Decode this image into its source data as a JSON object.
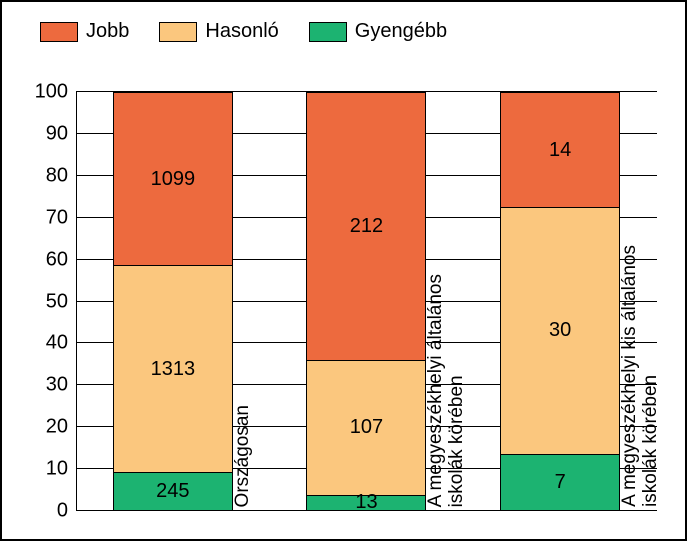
{
  "chart": {
    "type": "stacked-bar-percent",
    "background_color": "#ffffff",
    "border_color": "#000000",
    "legend": [
      {
        "label": "Jobb",
        "color": "#ed6a3e"
      },
      {
        "label": "Hasonló",
        "color": "#fbc77e"
      },
      {
        "label": "Gyengébb",
        "color": "#1cb371"
      }
    ],
    "y_axis": {
      "min": 0,
      "max": 100,
      "step": 10
    },
    "categories": [
      {
        "label": "Országosan",
        "segments": [
          {
            "key": "Gyengébb",
            "value": 245,
            "pct": 9.2
          },
          {
            "key": "Hasonló",
            "value": 1313,
            "pct": 49.4
          },
          {
            "key": "Jobb",
            "value": 1099,
            "pct": 41.4
          }
        ]
      },
      {
        "label": "A megyeszékhelyi általános\niskolák körében",
        "segments": [
          {
            "key": "Gyengébb",
            "value": 13,
            "pct": 3.9
          },
          {
            "key": "Hasonló",
            "value": 107,
            "pct": 32.2
          },
          {
            "key": "Jobb",
            "value": 212,
            "pct": 63.9
          }
        ]
      },
      {
        "label": "A megyeszékhelyi kis általános\niskolák körében",
        "segments": [
          {
            "key": "Gyengébb",
            "value": 7,
            "pct": 13.7
          },
          {
            "key": "Hasonló",
            "value": 30,
            "pct": 58.8
          },
          {
            "key": "Jobb",
            "value": 14,
            "pct": 27.5
          }
        ]
      }
    ],
    "text_color": "#000000",
    "font_size_legend": 20,
    "font_size_ticks": 20,
    "font_size_values": 20,
    "font_size_labels": 19
  }
}
